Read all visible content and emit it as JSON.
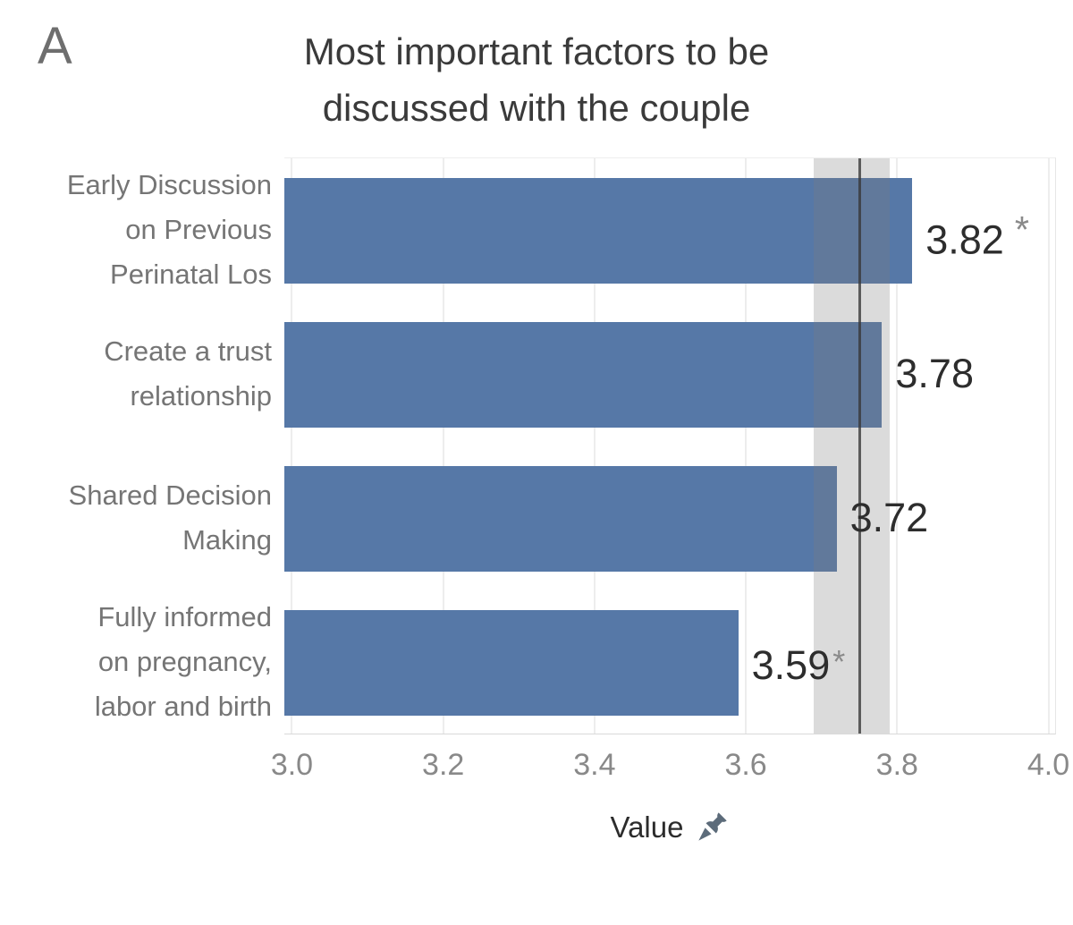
{
  "panel_label": "A",
  "chart_data": {
    "type": "bar",
    "orientation": "horizontal",
    "title": "Most important factors to be discussed with the couple",
    "title_display": "Most important factors to be\ndiscussed with the couple",
    "xlabel": "Value",
    "xlabel_icon": "pushpin-icon",
    "categories": [
      "Early Discussion on Previous Perinatal Los",
      "Create a trust relationship",
      "Shared Decision Making",
      "Fully informed on pregnancy, labor and birth"
    ],
    "values": [
      3.82,
      3.78,
      3.72,
      3.59
    ],
    "bars": [
      {
        "category": "Early Discussion on Previous Perinatal Los",
        "category_display": "Early Discussion\non Previous\nPerinatal Los",
        "value": 3.82,
        "label": "3.82",
        "star": true,
        "star_spaced": true
      },
      {
        "category": "Create a trust relationship",
        "category_display": "Create a trust\nrelationship",
        "value": 3.78,
        "label": "3.78",
        "star": false,
        "star_spaced": false
      },
      {
        "category": "Shared Decision Making",
        "category_display": "Shared Decision\nMaking",
        "value": 3.72,
        "label": "3.72",
        "star": false,
        "star_spaced": false
      },
      {
        "category": "Fully informed on pregnancy, labor and birth",
        "category_display": "Fully informed\non pregnancy,\nlabor and birth",
        "value": 3.59,
        "label": "3.59",
        "star": true,
        "star_spaced": false
      }
    ],
    "xticks": [
      {
        "label": "3.0",
        "value": 3.0
      },
      {
        "label": "3.2",
        "value": 3.2
      },
      {
        "label": "3.4",
        "value": 3.4
      },
      {
        "label": "3.6",
        "value": 3.6
      },
      {
        "label": "3.8",
        "value": 3.8
      },
      {
        "label": "4.0",
        "value": 4.0
      }
    ],
    "xlim": [
      2.99,
      4.01
    ],
    "grid": "vertical",
    "legend": "none",
    "reference_band": [
      3.69,
      3.79
    ],
    "reference_line": 3.75,
    "star_marker": "*",
    "colors": {
      "bar": "#5678a7",
      "reference_band": "rgba(125,125,125,0.28)",
      "reference_line": "rgba(55,55,55,0.78)",
      "gridline": "#ededed",
      "title": "#3a3a3a",
      "panel_label": "#6e6e6e",
      "category_label": "#757575",
      "value_label": "#2d2d2d",
      "tick_label": "#898989",
      "star": "#8a8a8a",
      "pin": "#5c6b7a"
    }
  }
}
